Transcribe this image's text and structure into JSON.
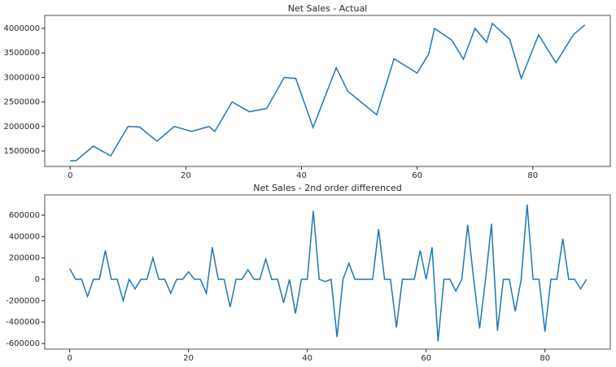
{
  "chart_data": [
    {
      "type": "line",
      "title": "Net Sales - Actual",
      "x": [
        0,
        1,
        4,
        7,
        10,
        12,
        15,
        18,
        21,
        24,
        25,
        28,
        31,
        34,
        37,
        39,
        42,
        46,
        48,
        53,
        56,
        60,
        62,
        63,
        66,
        68,
        70,
        72,
        73,
        76,
        78,
        81,
        84,
        87,
        89
      ],
      "series": [
        {
          "name": "Net Sales",
          "color": "#1f77b4",
          "values": [
            1300000,
            1300000,
            1600000,
            1400000,
            2000000,
            1990000,
            1700000,
            2000000,
            1900000,
            2000000,
            1900000,
            2500000,
            2300000,
            2370000,
            3000000,
            2980000,
            1980000,
            3200000,
            2720000,
            2240000,
            3380000,
            3090000,
            3480000,
            4000000,
            3760000,
            3370000,
            4000000,
            3720000,
            4100000,
            3780000,
            2980000,
            3870000,
            3300000,
            3870000,
            4070000
          ]
        }
      ],
      "xlim": [
        -4.4,
        93.4
      ],
      "ylim": [
        1185000,
        4265000
      ],
      "xticks": [
        0,
        20,
        40,
        60,
        80
      ],
      "yticks": [
        1500000,
        2000000,
        2500000,
        3000000,
        3500000,
        4000000
      ]
    },
    {
      "type": "line",
      "title": "Net Sales - 2nd order differenced",
      "x": [
        0,
        1,
        2,
        3,
        4,
        5,
        6,
        7,
        8,
        9,
        10,
        11,
        12,
        13,
        14,
        15,
        16,
        17,
        18,
        19,
        20,
        21,
        22,
        23,
        24,
        25,
        26,
        27,
        28,
        29,
        30,
        31,
        32,
        33,
        34,
        35,
        36,
        37,
        38,
        39,
        40,
        41,
        42,
        43,
        44,
        45,
        46,
        47,
        48,
        49,
        50,
        51,
        52,
        53,
        54,
        55,
        56,
        57,
        58,
        59,
        60,
        61,
        62,
        63,
        64,
        65,
        66,
        67,
        68,
        69,
        70,
        71,
        72,
        73,
        74,
        75,
        76,
        77,
        78,
        79,
        80,
        81,
        82,
        83,
        84,
        85,
        86,
        87
      ],
      "series": [
        {
          "name": "Differenced",
          "color": "#1f77b4",
          "values": [
            100000,
            0,
            0,
            -160000,
            0,
            0,
            270000,
            0,
            0,
            -200000,
            0,
            -90000,
            0,
            0,
            200000,
            0,
            0,
            -130000,
            0,
            0,
            70000,
            0,
            0,
            -130000,
            300000,
            0,
            0,
            -260000,
            0,
            0,
            90000,
            0,
            0,
            190000,
            0,
            0,
            -220000,
            0,
            -320000,
            0,
            0,
            640000,
            0,
            -20000,
            0,
            -540000,
            0,
            150000,
            0,
            0,
            0,
            0,
            470000,
            0,
            0,
            -450000,
            0,
            0,
            0,
            270000,
            0,
            300000,
            -580000,
            0,
            0,
            -110000,
            0,
            510000,
            0,
            -460000,
            0,
            520000,
            -480000,
            0,
            0,
            -300000,
            0,
            700000,
            0,
            0,
            -490000,
            0,
            0,
            380000,
            0,
            0,
            -90000,
            0
          ]
        }
      ],
      "xlim": [
        -4.2,
        91
      ],
      "ylim": [
        -653000,
        790000
      ],
      "xticks": [
        0,
        20,
        40,
        60,
        80
      ],
      "yticks": [
        -600000,
        -400000,
        -200000,
        0,
        200000,
        400000,
        600000
      ]
    }
  ]
}
